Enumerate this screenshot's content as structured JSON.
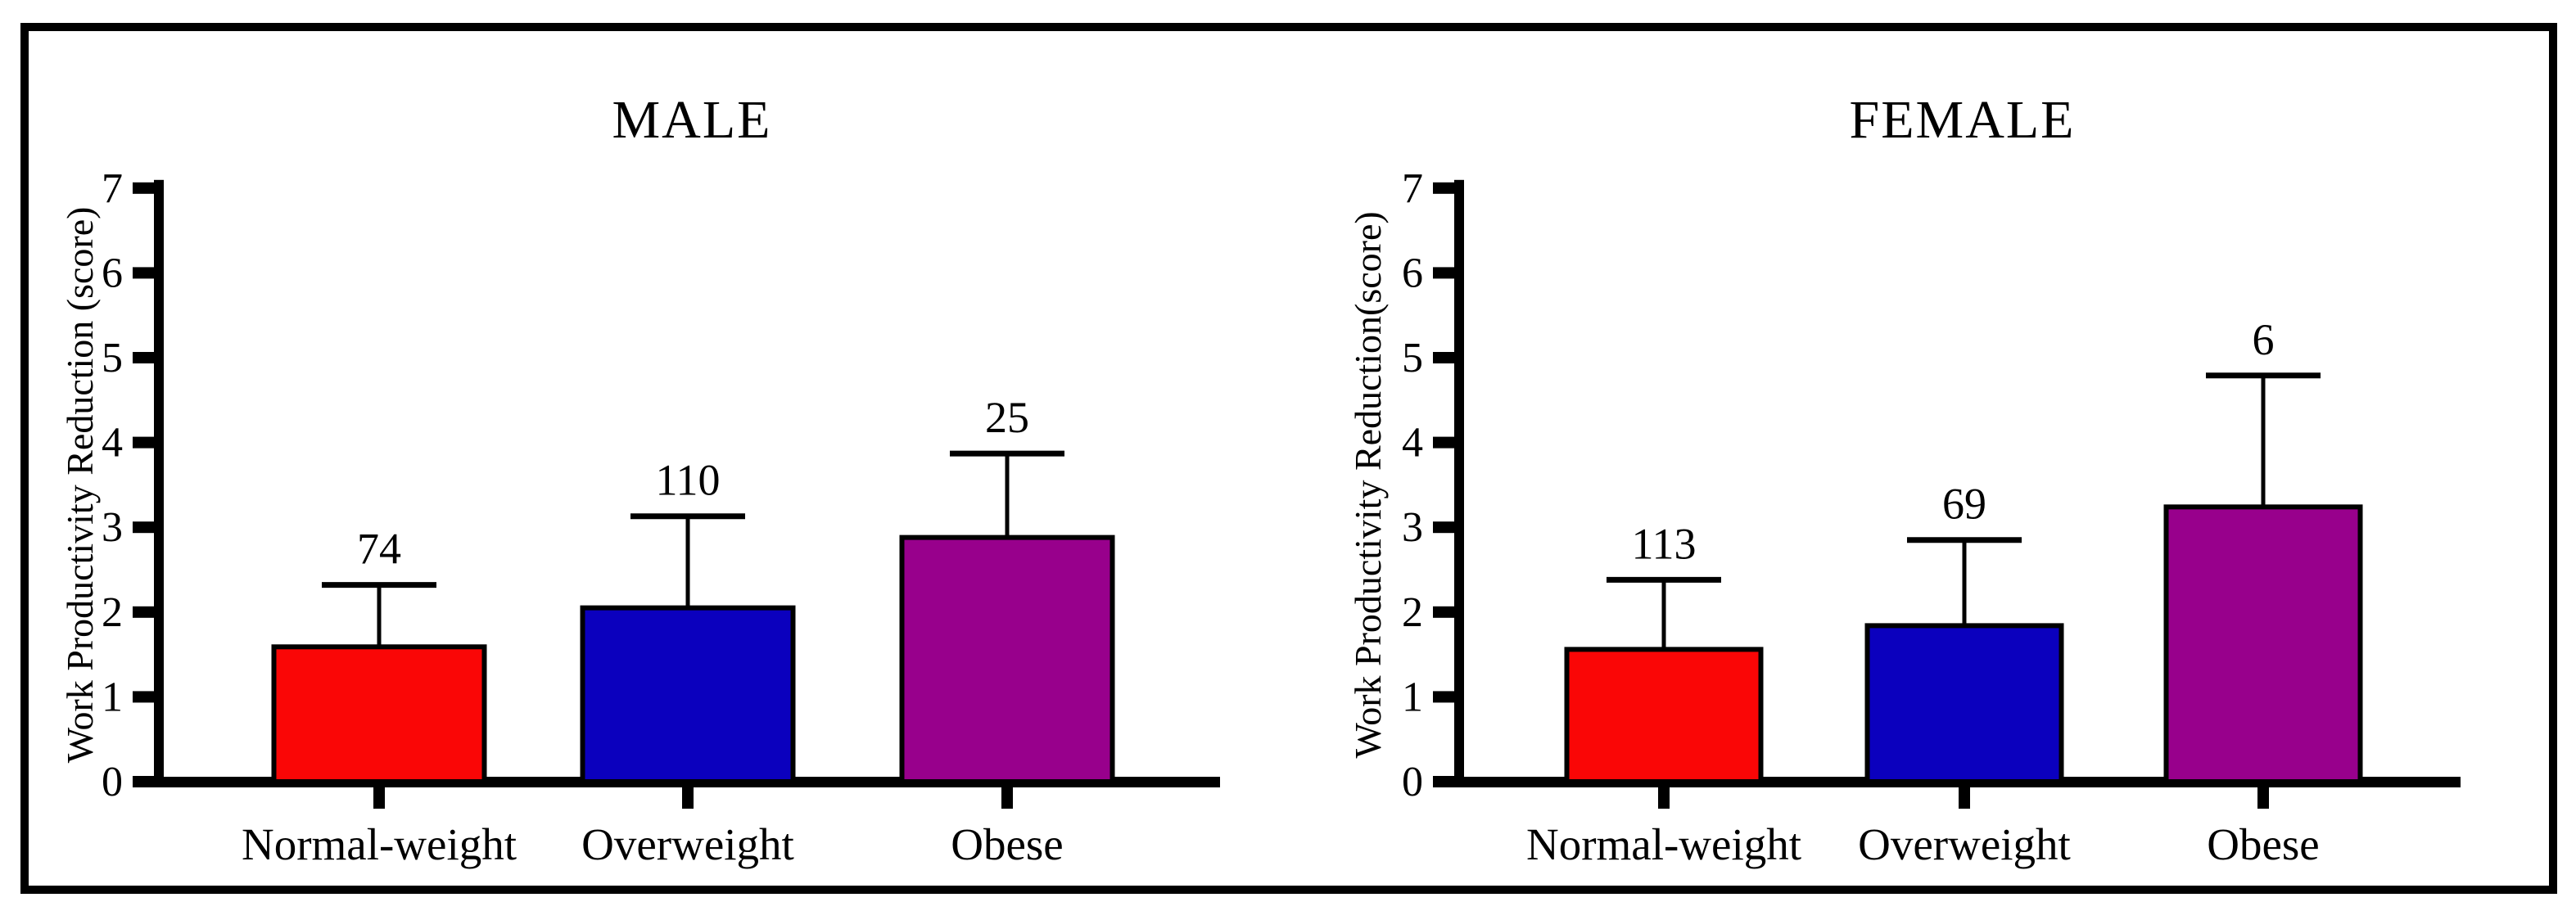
{
  "figure": {
    "background": "#FFFFFF",
    "border_color": "#000000",
    "axis_color": "#000000",
    "text_color": "#000000"
  },
  "chart_data": [
    {
      "type": "bar",
      "title": "MALE",
      "ylabel": "Work Productivity Reduction (score)",
      "xlabel": "",
      "ylim": [
        0,
        7
      ],
      "yticks": [
        0,
        1,
        2,
        3,
        4,
        5,
        6,
        7
      ],
      "grid": false,
      "legend": "none",
      "categories": [
        "Normal-weight",
        "Overweight",
        "Obese"
      ],
      "values": [
        1.59,
        2.05,
        2.88
      ],
      "error_top": [
        2.32,
        3.13,
        3.87
      ],
      "bar_labels": [
        "74",
        "110",
        "25"
      ],
      "bar_colors": [
        "#FA0606",
        "#0B00BE",
        "#98008C"
      ]
    },
    {
      "type": "bar",
      "title": "FEMALE",
      "ylabel": "Work Productivity Reduction(score)",
      "xlabel": "",
      "ylim": [
        0,
        7
      ],
      "yticks": [
        0,
        1,
        2,
        3,
        4,
        5,
        6,
        7
      ],
      "grid": false,
      "legend": "none",
      "categories": [
        "Normal-weight",
        "Overweight",
        "Obese"
      ],
      "values": [
        1.56,
        1.84,
        3.24
      ],
      "error_top": [
        2.38,
        2.85,
        4.79
      ],
      "bar_labels": [
        "113",
        "69",
        "6"
      ],
      "bar_colors": [
        "#FA0606",
        "#0B00BE",
        "#98008C"
      ]
    }
  ]
}
